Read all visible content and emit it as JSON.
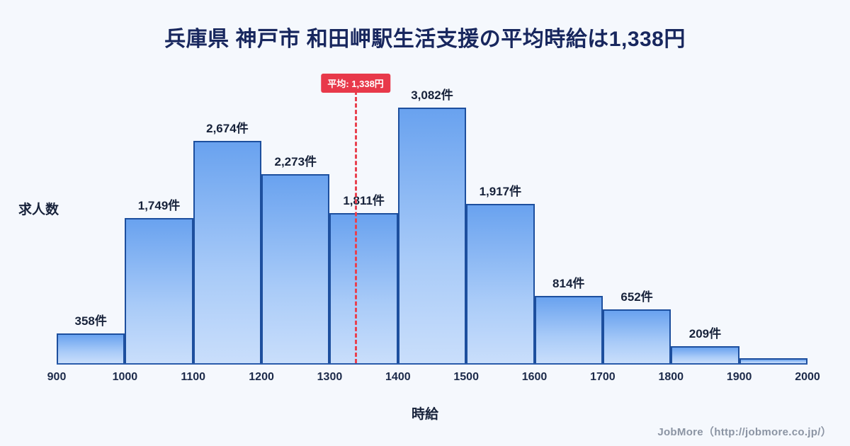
{
  "title": "兵庫県 神戸市 和田岬駅生活支援の平均時給は1,338円",
  "footer": {
    "credit": "JobMore（http://jobmore.co.jp/）"
  },
  "chart_data": {
    "type": "bar",
    "title": "兵庫県 神戸市 和田岬駅生活支援の平均時給は1,338円",
    "xlabel": "時給",
    "ylabel": "求人数",
    "x_range": [
      900,
      2000
    ],
    "ylim": [
      0,
      3300
    ],
    "grid": false,
    "x_ticks": [
      900,
      1000,
      1100,
      1200,
      1300,
      1400,
      1500,
      1600,
      1700,
      1800,
      1900,
      2000
    ],
    "bins": [
      {
        "range": [
          900,
          1000
        ],
        "value": 358,
        "label": "358件"
      },
      {
        "range": [
          1000,
          1100
        ],
        "value": 1749,
        "label": "1,749件"
      },
      {
        "range": [
          1100,
          1200
        ],
        "value": 2674,
        "label": "2,674件"
      },
      {
        "range": [
          1200,
          1300
        ],
        "value": 2273,
        "label": "2,273件"
      },
      {
        "range": [
          1300,
          1400
        ],
        "value": 1811,
        "label": "1,811件"
      },
      {
        "range": [
          1400,
          1500
        ],
        "value": 3082,
        "label": "3,082件"
      },
      {
        "range": [
          1500,
          1600
        ],
        "value": 1917,
        "label": "1,917件"
      },
      {
        "range": [
          1600,
          1700
        ],
        "value": 814,
        "label": "814件"
      },
      {
        "range": [
          1700,
          1800
        ],
        "value": 652,
        "label": "652件"
      },
      {
        "range": [
          1800,
          1900
        ],
        "value": 209,
        "label": "209件"
      },
      {
        "range": [
          1900,
          2000
        ],
        "value": 60,
        "label": ""
      }
    ],
    "average": {
      "value": 1338,
      "label": "平均: 1,338円"
    },
    "colors": {
      "background": "#f5f8fd",
      "title": "#18275e",
      "bar_gradient_top": "#69a2ef",
      "bar_gradient_bottom": "#c9defb",
      "bar_border": "#1d4f9e",
      "value_label": "#17223a",
      "average_line": "#e8414f",
      "average_badge_bg": "#e8394a",
      "average_badge_text": "#ffffff",
      "footer_text": "#8b94a3"
    }
  }
}
